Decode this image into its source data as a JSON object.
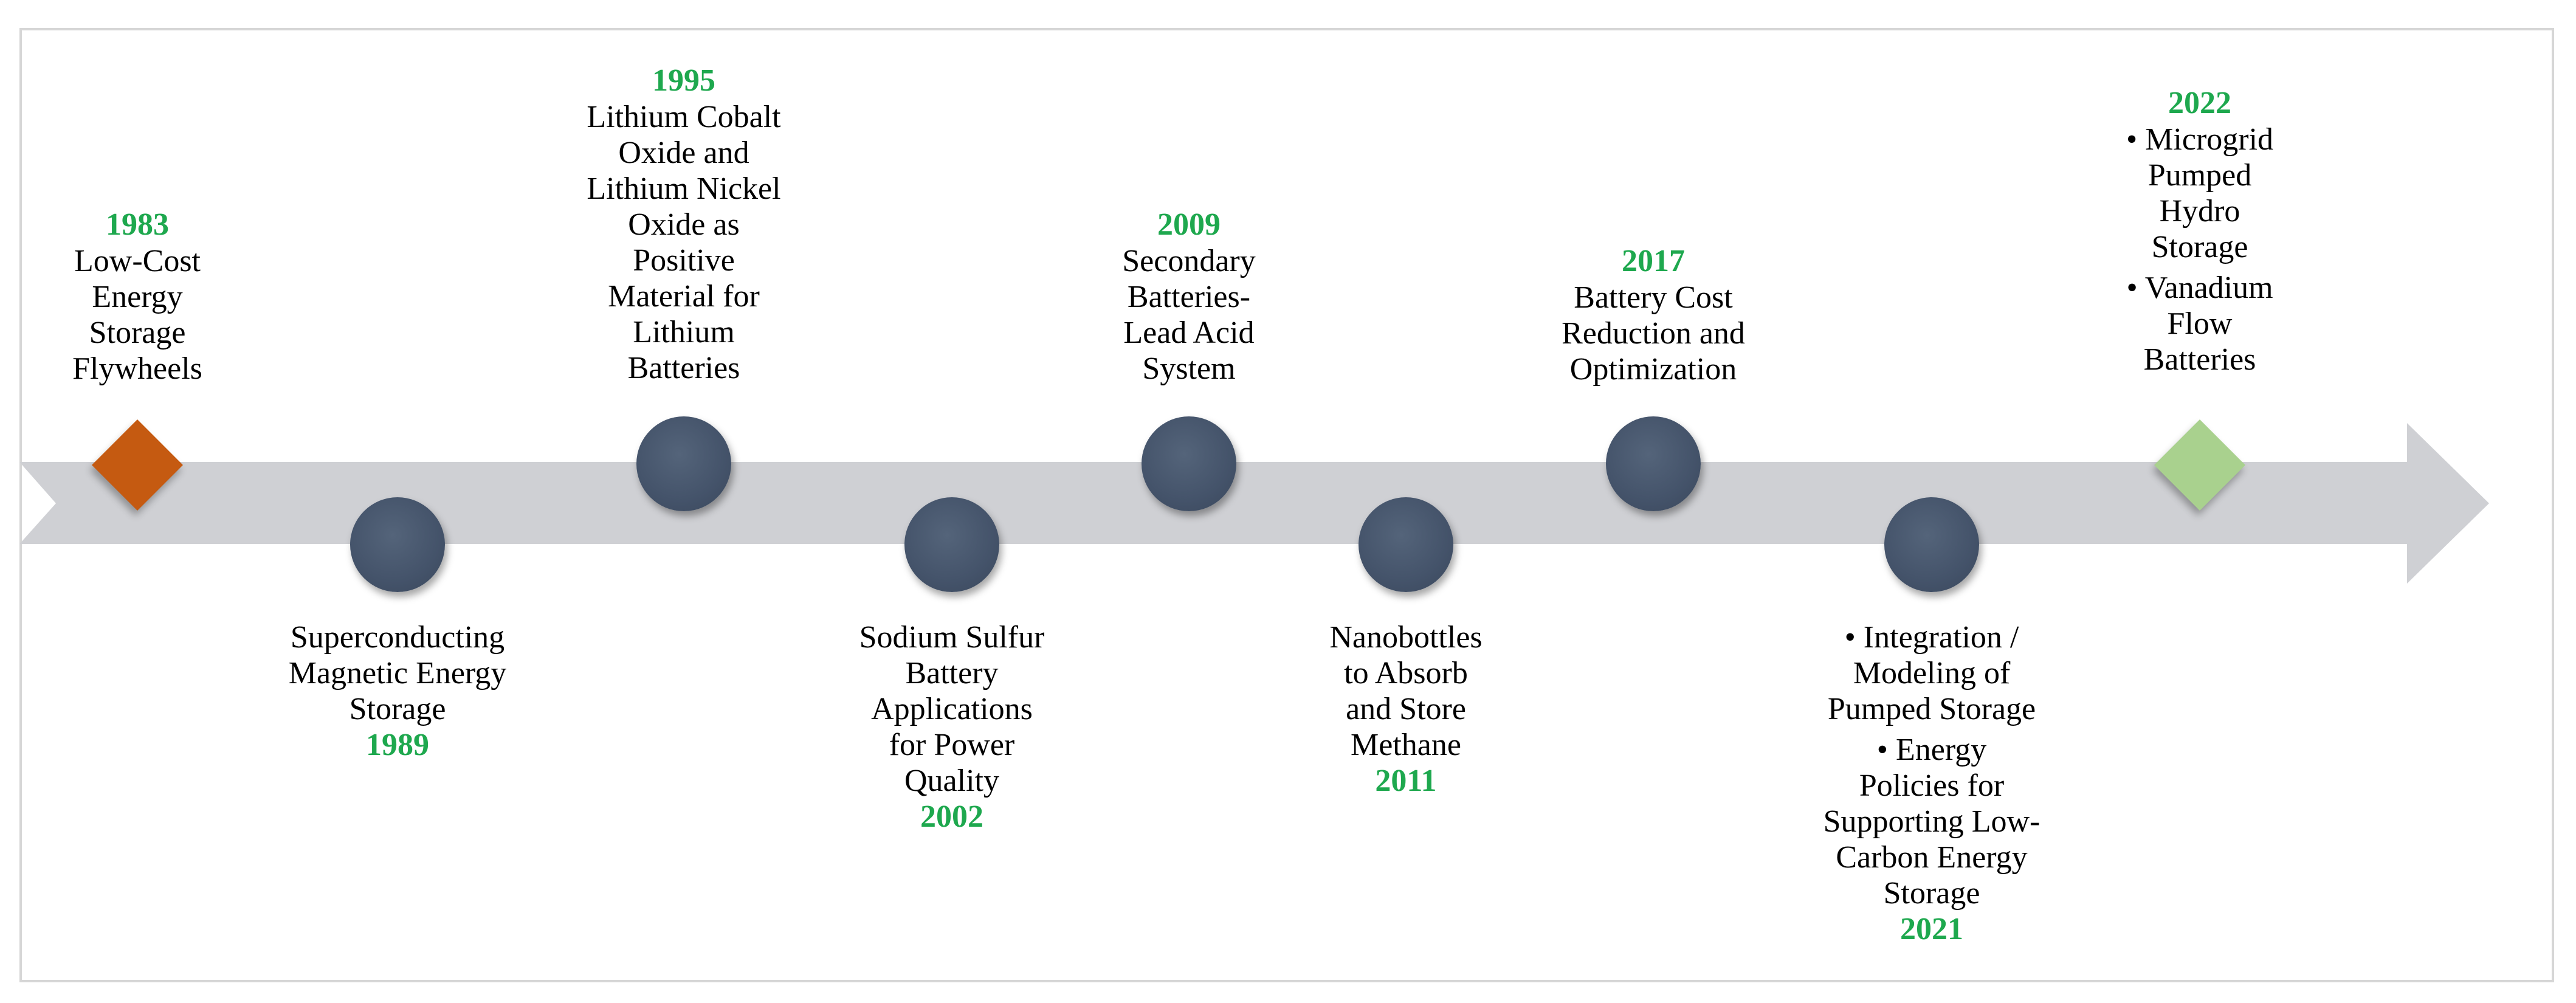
{
  "colors": {
    "arrow": "#cfd0d4",
    "circle": "#44536a",
    "first_marker": "#c55a11",
    "last_marker": "#a9d18e",
    "year": "#1ea84e"
  },
  "events": [
    {
      "year": "1983",
      "text": "Low-Cost\nEnergy\nStorage\nFlywheels",
      "marker": "diamond-orange-icon"
    },
    {
      "year": "1989",
      "text": "Superconducting\nMagnetic Energy\nStorage",
      "marker": "circle-icon"
    },
    {
      "year": "1995",
      "text": "Lithium Cobalt\nOxide and\nLithium Nickel\nOxide as\nPositive\nMaterial for\nLithium\nBatteries",
      "marker": "circle-icon"
    },
    {
      "year": "2002",
      "text": "Sodium Sulfur\nBattery\nApplications\nfor Power\nQuality",
      "marker": "circle-icon"
    },
    {
      "year": "2009",
      "text": "Secondary\nBatteries-\nLead Acid\nSystem",
      "marker": "circle-icon"
    },
    {
      "year": "2011",
      "text": "Nanobottles\nto Absorb\nand Store\nMethane",
      "marker": "circle-icon"
    },
    {
      "year": "2017",
      "text": "Battery Cost\nReduction and\nOptimization",
      "marker": "circle-icon"
    },
    {
      "year": "2021",
      "bullets": [
        "• Integration /\nModeling of\nPumped Storage",
        "• Energy\nPolicies for\nSupporting Low-\nCarbon Energy\nStorage"
      ],
      "marker": "circle-icon"
    },
    {
      "year": "2022",
      "bullets": [
        "• Microgrid\nPumped\nHydro\nStorage",
        "• Vanadium\nFlow\nBatteries"
      ],
      "marker": "diamond-green-icon"
    }
  ]
}
